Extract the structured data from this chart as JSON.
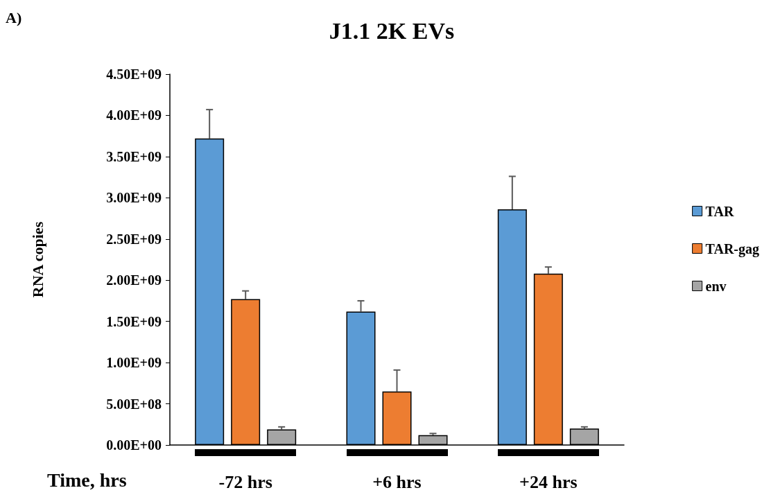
{
  "chart_data": {
    "type": "bar",
    "title": "J1.1 2K EVs",
    "ylabel": "RNA copies",
    "xlabel": "Time, hrs",
    "annotations": [
      "A)"
    ],
    "categories": [
      "-72 hrs",
      "+6 hrs",
      "+24 hrs"
    ],
    "series": [
      {
        "name": "TAR",
        "color": "#5b9bd5",
        "values": [
          3720000000,
          1620000000,
          2860000000
        ],
        "errors": [
          [
            3720000000,
            4070000000
          ],
          [
            1620000000,
            1750000000
          ],
          [
            2860000000,
            3260000000
          ]
        ]
      },
      {
        "name": "TAR-gag",
        "color": "#ed7d31",
        "values": [
          1770000000,
          650000000,
          2080000000
        ],
        "errors": [
          [
            1770000000,
            1870000000
          ],
          [
            650000000,
            910000000
          ],
          [
            2080000000,
            2160000000
          ]
        ]
      },
      {
        "name": "env",
        "color": "#a5a5a5",
        "values": [
          190000000,
          120000000,
          200000000
        ],
        "errors": [
          [
            190000000,
            220000000
          ],
          [
            120000000,
            140000000
          ],
          [
            200000000,
            220000000
          ]
        ]
      }
    ],
    "ylim": [
      0,
      4500000000
    ],
    "yticks": [
      {
        "value": 0,
        "label": "0.00E+00"
      },
      {
        "value": 500000000,
        "label": "5.00E+08"
      },
      {
        "value": 1000000000,
        "label": "1.00E+09"
      },
      {
        "value": 1500000000,
        "label": "1.50E+09"
      },
      {
        "value": 2000000000,
        "label": "2.00E+09"
      },
      {
        "value": 2500000000,
        "label": "2.50E+09"
      },
      {
        "value": 3000000000,
        "label": "3.00E+09"
      },
      {
        "value": 3500000000,
        "label": "3.50E+09"
      },
      {
        "value": 4000000000,
        "label": "4.00E+09"
      },
      {
        "value": 4500000000,
        "label": "4.50E+09"
      }
    ],
    "grid": false,
    "legend": "right"
  }
}
